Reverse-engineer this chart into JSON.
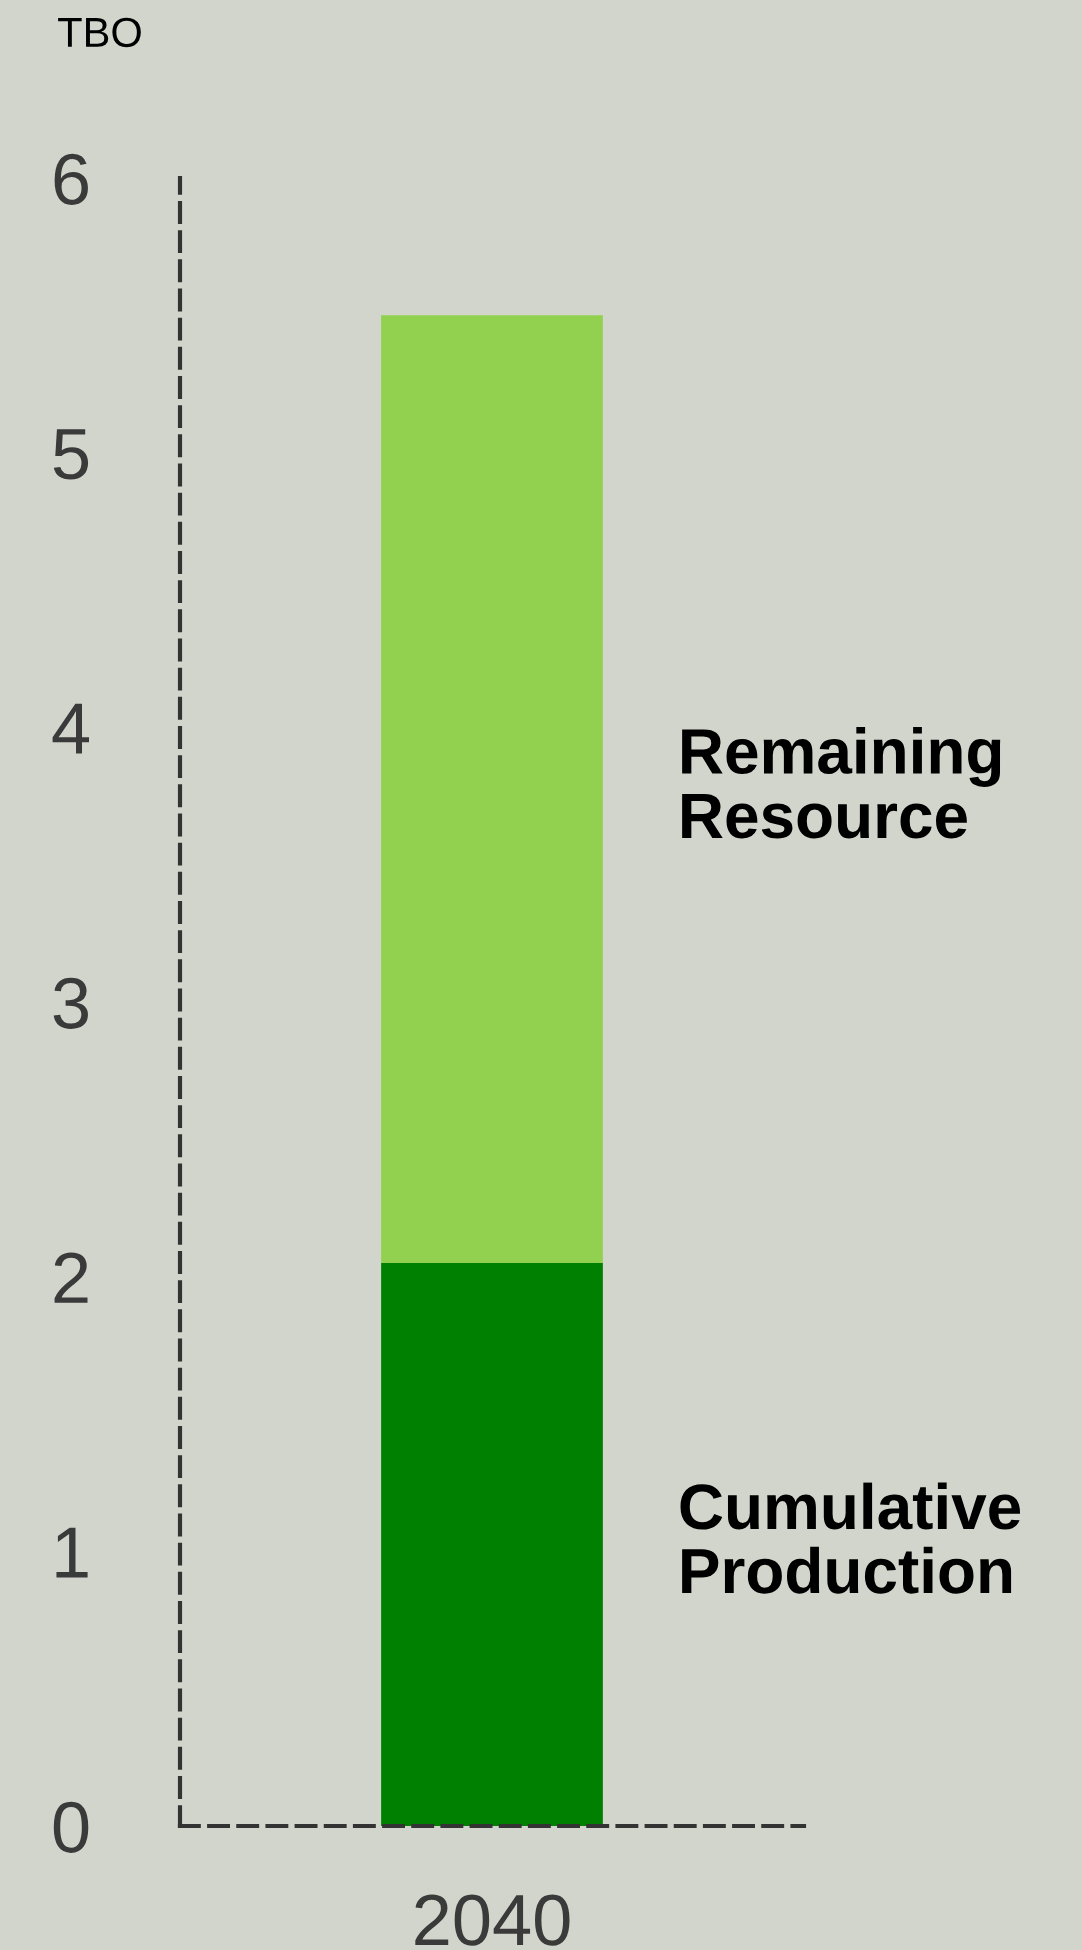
{
  "chart_data": {
    "type": "bar",
    "stacked": true,
    "ylabel": "TBO",
    "categories": [
      "2040"
    ],
    "series": [
      {
        "name": "Cumulative Production",
        "color": "#008000",
        "values": [
          2.05
        ]
      },
      {
        "name": "Remaining Resource",
        "color": "#92d050",
        "values": [
          3.45
        ]
      }
    ],
    "ylim": [
      0,
      6
    ],
    "yticks": [
      0,
      1,
      2,
      3,
      4,
      5,
      6
    ]
  }
}
